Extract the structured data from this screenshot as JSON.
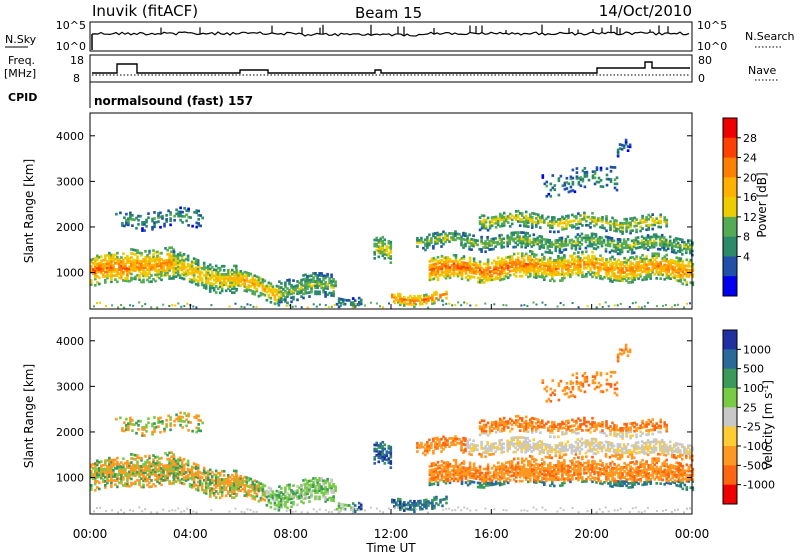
{
  "header": {
    "station": "Inuvik (fitACF)",
    "beam": "Beam 15",
    "date": "14/Oct/2010"
  },
  "labels": {
    "nsky": "N.Sky",
    "nsearch": "N.Search",
    "freq_line1": "Freq.",
    "freq_line2": "[MHz]",
    "nave": "Nave",
    "cpid": "CPID",
    "program": "normalsound (fast) 157"
  },
  "small_axes": {
    "noise_ticks": [
      "10^5",
      "10^0"
    ],
    "freq_ticks": [
      "18",
      "8"
    ],
    "nave_ticks": [
      "80",
      "0"
    ]
  },
  "chart_data": [
    {
      "type": "heatmap",
      "ylabel": "Slant Range [km]",
      "xlabel": "",
      "y_ticks": [
        "1000",
        "2000",
        "3000",
        "4000"
      ],
      "ylim": [
        200,
        4500
      ],
      "colorbar": {
        "label": "Power [dB]",
        "ticks": [
          "28",
          "24",
          "20",
          "16",
          "12",
          "8",
          "4"
        ],
        "colors": [
          "#ee0000",
          "#ff4000",
          "#ff8000",
          "#ffb000",
          "#eecc00",
          "#55aa55",
          "#2a8a6a",
          "#2050aa",
          "#0000ee"
        ]
      }
    },
    {
      "type": "heatmap",
      "ylabel": "Slant Range [km]",
      "xlabel": "Time UT",
      "y_ticks": [
        "1000",
        "2000",
        "3000",
        "4000"
      ],
      "x_ticks": [
        "00:00",
        "04:00",
        "08:00",
        "12:00",
        "16:00",
        "20:00",
        "00:00"
      ],
      "ylim": [
        200,
        4500
      ],
      "colorbar": {
        "label": "Velocity [m s^-1]",
        "ticks": [
          "1000",
          "500",
          "100",
          "25",
          "-25",
          "-100",
          "-500",
          "-1000"
        ],
        "colors": [
          "#2030a0",
          "#2a6a9a",
          "#3a9a5a",
          "#77cc44",
          "#c8c8c8",
          "#ffcc33",
          "#ff9922",
          "#ff6611",
          "#ee0000"
        ]
      }
    }
  ]
}
